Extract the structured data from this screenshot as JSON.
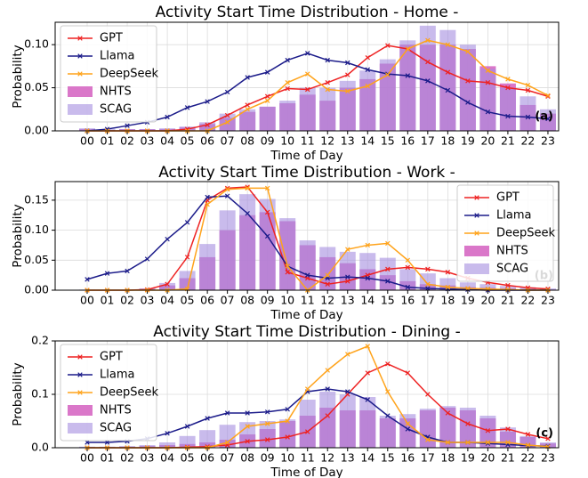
{
  "chart_data": [
    {
      "type": "bar-line",
      "title": "Activity Start Time Distribution - Home -",
      "x_label": "Time of Day",
      "y_label": "Probability",
      "annotation": "(a)",
      "categories": [
        "00",
        "01",
        "02",
        "03",
        "04",
        "05",
        "06",
        "07",
        "08",
        "09",
        "10",
        "11",
        "12",
        "13",
        "14",
        "15",
        "16",
        "17",
        "18",
        "19",
        "20",
        "21",
        "22",
        "23"
      ],
      "ylim": [
        0,
        0.126
      ],
      "yticks": [
        {
          "value": 0,
          "label": "0.00"
        },
        {
          "value": 0.05,
          "label": "0.05"
        },
        {
          "value": 0.1,
          "label": "0.10"
        }
      ],
      "grid": true,
      "legend": "upper left",
      "series": [
        {
          "name": "GPT",
          "kind": "line",
          "color": "#ee2222",
          "values": [
            0,
            0,
            0,
            0,
            0,
            0.002,
            0.007,
            0.018,
            0.03,
            0.04,
            0.049,
            0.048,
            0.056,
            0.065,
            0.085,
            0.099,
            0.095,
            0.08,
            0.068,
            0.058,
            0.056,
            0.05,
            0.047,
            0.04
          ]
        },
        {
          "name": "Llama",
          "kind": "line",
          "color": "#1c1c8a",
          "values": [
            0,
            0.002,
            0.006,
            0.01,
            0.016,
            0.027,
            0.034,
            0.045,
            0.062,
            0.068,
            0.082,
            0.09,
            0.082,
            0.079,
            0.071,
            0.066,
            0.064,
            0.058,
            0.047,
            0.033,
            0.022,
            0.017,
            0.016,
            0.014
          ]
        },
        {
          "name": "DeepSeek",
          "kind": "line",
          "color": "#ffa31a",
          "values": [
            0,
            0,
            0,
            0,
            0,
            0,
            0,
            0.01,
            0.025,
            0.035,
            0.056,
            0.066,
            0.048,
            0.046,
            0.052,
            0.065,
            0.095,
            0.105,
            0.1,
            0.092,
            0.07,
            0.06,
            0.053,
            0.041
          ]
        },
        {
          "name": "NHTS",
          "kind": "bar",
          "color": "#d45fbf",
          "values": [
            0.002,
            0.001,
            0.002,
            0.002,
            0.002,
            0.004,
            0.008,
            0.015,
            0.022,
            0.028,
            0.032,
            0.042,
            0.035,
            0.05,
            0.06,
            0.078,
            0.1,
            0.1,
            0.1,
            0.095,
            0.075,
            0.055,
            0.03,
            0.02
          ]
        },
        {
          "name": "SCAG",
          "kind": "bar",
          "color": "#a58de0",
          "values": [
            0.003,
            0.002,
            0.002,
            0.002,
            0.003,
            0.005,
            0.01,
            0.02,
            0.025,
            0.028,
            0.035,
            0.05,
            0.05,
            0.058,
            0.07,
            0.083,
            0.105,
            0.122,
            0.117,
            0.1,
            0.072,
            0.05,
            0.04,
            0.025
          ]
        }
      ]
    },
    {
      "type": "bar-line",
      "title": "Activity Start Time Distribution - Work -",
      "x_label": "Time of Day",
      "y_label": "Probability",
      "annotation": "(b)",
      "categories": [
        "00",
        "01",
        "02",
        "03",
        "04",
        "05",
        "06",
        "07",
        "08",
        "09",
        "10",
        "11",
        "12",
        "13",
        "14",
        "15",
        "16",
        "17",
        "18",
        "19",
        "20",
        "21",
        "22",
        "23"
      ],
      "ylim": [
        0,
        0.181
      ],
      "yticks": [
        {
          "value": 0,
          "label": "0.00"
        },
        {
          "value": 0.05,
          "label": "0.05"
        },
        {
          "value": 0.1,
          "label": "0.10"
        },
        {
          "value": 0.15,
          "label": "0.15"
        }
      ],
      "grid": true,
      "legend": "upper right",
      "series": [
        {
          "name": "GPT",
          "kind": "line",
          "color": "#ee2222",
          "values": [
            0,
            0,
            0,
            0.001,
            0.01,
            0.055,
            0.15,
            0.17,
            0.172,
            0.13,
            0.03,
            0.02,
            0.01,
            0.015,
            0.025,
            0.035,
            0.038,
            0.035,
            0.03,
            0.02,
            0.013,
            0.008,
            0.004,
            0.002
          ]
        },
        {
          "name": "Llama",
          "kind": "line",
          "color": "#1c1c8a",
          "values": [
            0.018,
            0.028,
            0.032,
            0.052,
            0.085,
            0.113,
            0.155,
            0.157,
            0.128,
            0.09,
            0.04,
            0.025,
            0.02,
            0.022,
            0.02,
            0.015,
            0.005,
            0.003,
            0.002,
            0.001,
            0,
            0,
            0,
            0
          ]
        },
        {
          "name": "DeepSeek",
          "kind": "line",
          "color": "#ffa31a",
          "values": [
            0,
            0,
            0,
            0,
            0,
            0.002,
            0.143,
            0.168,
            0.17,
            0.17,
            0.04,
            0,
            0.025,
            0.068,
            0.075,
            0.078,
            0.05,
            0.01,
            0.005,
            0.003,
            0.002,
            0.001,
            0,
            0
          ]
        },
        {
          "name": "NHTS",
          "kind": "bar",
          "color": "#d45fbf",
          "values": [
            0,
            0,
            0,
            0.002,
            0.008,
            0.02,
            0.055,
            0.1,
            0.125,
            0.13,
            0.115,
            0.075,
            0.055,
            0.045,
            0.035,
            0.025,
            0.015,
            0.01,
            0.008,
            0.005,
            0.004,
            0.003,
            0.002,
            0.001
          ]
        },
        {
          "name": "SCAG",
          "kind": "bar",
          "color": "#a58de0",
          "values": [
            0.001,
            0,
            0,
            0.003,
            0.012,
            0.032,
            0.077,
            0.133,
            0.16,
            0.152,
            0.12,
            0.083,
            0.072,
            0.064,
            0.062,
            0.054,
            0.035,
            0.028,
            0.02,
            0.013,
            0.01,
            0.007,
            0.005,
            0.003
          ]
        }
      ]
    },
    {
      "type": "bar-line",
      "title": "Activity Start Time Distribution - Dining -",
      "x_label": "Time of Day",
      "y_label": "Probability",
      "annotation": "(c)",
      "categories": [
        "00",
        "01",
        "02",
        "03",
        "04",
        "05",
        "06",
        "07",
        "08",
        "09",
        "10",
        "11",
        "12",
        "13",
        "14",
        "15",
        "16",
        "17",
        "18",
        "19",
        "20",
        "21",
        "22",
        "23"
      ],
      "ylim": [
        0,
        0.2
      ],
      "yticks": [
        {
          "value": 0,
          "label": "0.0"
        },
        {
          "value": 0.1,
          "label": "0.1"
        },
        {
          "value": 0.2,
          "label": "0.2"
        }
      ],
      "grid": true,
      "legend": "upper left",
      "series": [
        {
          "name": "GPT",
          "kind": "line",
          "color": "#ee2222",
          "values": [
            0,
            0,
            0,
            0,
            0,
            0.001,
            0.002,
            0.005,
            0.012,
            0.015,
            0.02,
            0.03,
            0.06,
            0.1,
            0.14,
            0.157,
            0.14,
            0.1,
            0.065,
            0.045,
            0.032,
            0.035,
            0.025,
            0.017
          ]
        },
        {
          "name": "Llama",
          "kind": "line",
          "color": "#1c1c8a",
          "values": [
            0.01,
            0.01,
            0.012,
            0.017,
            0.027,
            0.04,
            0.055,
            0.065,
            0.065,
            0.067,
            0.072,
            0.105,
            0.11,
            0.105,
            0.09,
            0.06,
            0.035,
            0.02,
            0.01,
            0.01,
            0.008,
            0.006,
            0.004,
            0.003
          ]
        },
        {
          "name": "DeepSeek",
          "kind": "line",
          "color": "#ffa31a",
          "values": [
            0,
            0,
            0,
            0,
            0,
            0,
            0,
            0.01,
            0.04,
            0.045,
            0.05,
            0.11,
            0.145,
            0.175,
            0.19,
            0.105,
            0.045,
            0.015,
            0.01,
            0.01,
            0.01,
            0.01,
            0.005,
            0.002
          ]
        },
        {
          "name": "NHTS",
          "kind": "bar",
          "color": "#d45fbf",
          "values": [
            0.001,
            0.001,
            0.002,
            0.003,
            0.005,
            0.007,
            0.01,
            0.015,
            0.025,
            0.035,
            0.05,
            0.06,
            0.075,
            0.07,
            0.07,
            0.055,
            0.055,
            0.07,
            0.075,
            0.07,
            0.055,
            0.03,
            0.02,
            0.008
          ]
        },
        {
          "name": "SCAG",
          "kind": "bar",
          "color": "#a58de0",
          "values": [
            0.002,
            0.002,
            0.003,
            0.005,
            0.01,
            0.022,
            0.033,
            0.043,
            0.048,
            0.05,
            0.053,
            0.09,
            0.105,
            0.1,
            0.095,
            0.06,
            0.063,
            0.073,
            0.078,
            0.075,
            0.06,
            0.038,
            0.022,
            0.01
          ]
        }
      ]
    }
  ]
}
